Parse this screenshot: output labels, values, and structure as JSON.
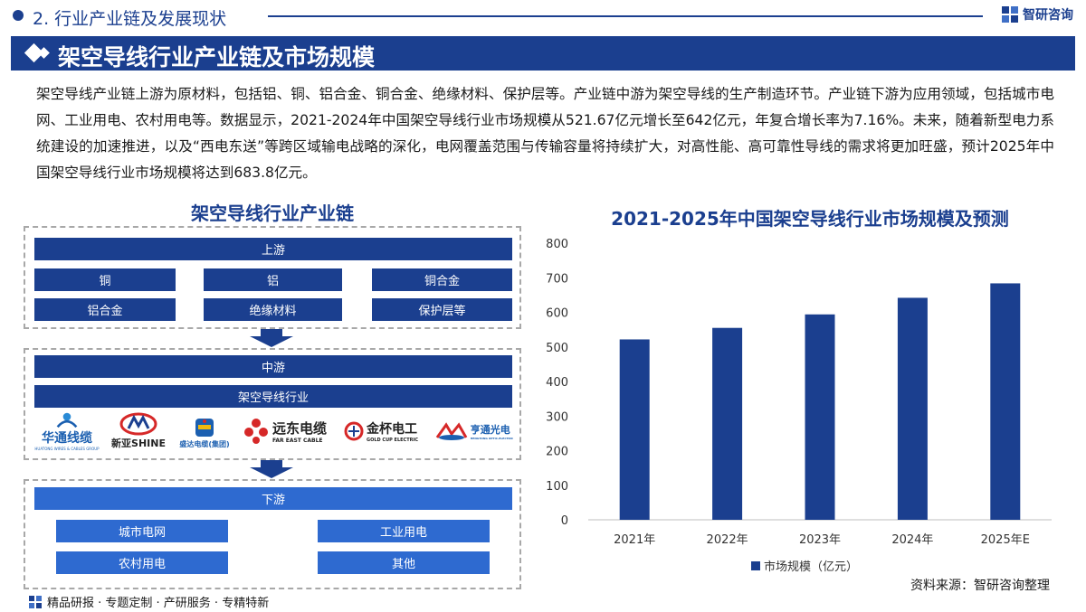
{
  "header": {
    "section_label": "2. 行业产业链及发展现状",
    "brand_name": "智研咨询"
  },
  "title_bar": {
    "title": "架空导线行业产业链及市场规模"
  },
  "intro": {
    "text": "架空导线产业链上游为原材料，包括铝、铜、铝合金、铜合金、绝缘材料、保护层等。产业链中游为架空导线的生产制造环节。产业链下游为应用领域，包括城市电网、工业用电、农村用电等。数据显示，2021-2024年中国架空导线行业市场规模从521.67亿元增长至642亿元，年复合增长率为7.16%。未来，随着新型电力系统建设的加速推进，以及“西电东送”等跨区域输电战略的深化，电网覆盖范围与传输容量将持续扩大，对高性能、高可靠性导线的需求将更加旺盛，预计2025年中国架空导线行业市场规模将达到683.8亿元。"
  },
  "industry_chain": {
    "title": "架空导线行业产业链",
    "upstream": {
      "label": "上游",
      "items": [
        "铜",
        "铝",
        "铜合金",
        "铝合金",
        "绝缘材料",
        "保护层等"
      ]
    },
    "midstream": {
      "label": "中游",
      "sub_label": "架空导线行业",
      "logos": [
        {
          "name": "华通线缆",
          "sub": "HUATONG WIRES & CABLES GROUP",
          "color": "#1b5fb0"
        },
        {
          "name": "新亚SHINE",
          "sub": "",
          "color": "#222222"
        },
        {
          "name": "盛达电缆(集团)",
          "sub": "",
          "color": "#1b5fb0"
        },
        {
          "name": "远东电缆",
          "sub": "FAR EAST CABLE",
          "color": "#222222"
        },
        {
          "name": "金杯电工",
          "sub": "GOLD CUP ELECTRIC",
          "color": "#222222"
        },
        {
          "name": "亨通光电",
          "sub": "HENGTONG OPTIC-ELECTRIC",
          "color": "#1b5fb0"
        }
      ]
    },
    "downstream": {
      "label": "下游",
      "items": [
        "城市电网",
        "工业用电",
        "农村用电",
        "其他"
      ]
    }
  },
  "chart_data": {
    "type": "bar",
    "title": "2021-2025年中国架空导线行业市场规模及预测",
    "categories": [
      "2021年",
      "2022年",
      "2023年",
      "2024年",
      "2025年E"
    ],
    "series": [
      {
        "name": "市场规模（亿元）",
        "values": [
          521.67,
          555,
          594,
          642,
          683.8
        ],
        "color": "#1b3f8f"
      }
    ],
    "ylim": [
      0,
      800
    ],
    "yticks": [
      0,
      100,
      200,
      300,
      400,
      500,
      600,
      700,
      800
    ],
    "grid": false,
    "legend": "bottom"
  },
  "footer": {
    "source": "资料来源：智研咨询整理",
    "services": "精品研报 · 专题定制 · 产研服务 · 专精特新"
  },
  "colors": {
    "primary": "#1b3f8f",
    "bar": "#1b3f8f"
  }
}
